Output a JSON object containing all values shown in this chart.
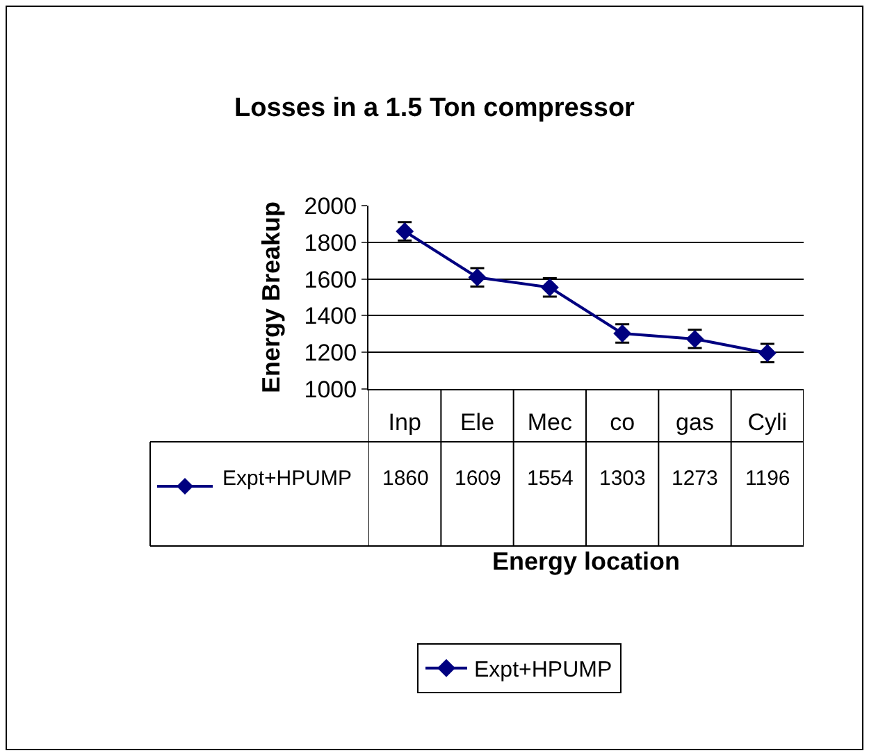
{
  "chart_data": {
    "type": "line",
    "title": "Losses in a 1.5 Ton compressor",
    "xlabel": "Energy location",
    "ylabel": "Energy Breakup",
    "categories": [
      "Inp",
      "Ele",
      "Mec",
      "co",
      "gas",
      "Cyli"
    ],
    "series": [
      {
        "name": "Expt+HPUMP",
        "color": "#000080",
        "values": [
          1860,
          1609,
          1554,
          1303,
          1273,
          1196
        ],
        "errors": [
          50,
          50,
          50,
          50,
          50,
          50
        ]
      }
    ],
    "ylim": [
      1000,
      2000
    ],
    "yticks": [
      1000,
      1200,
      1400,
      1600,
      1800,
      2000
    ],
    "grid": "y",
    "legend": "bottom",
    "marker": "diamond",
    "line_style": "solid",
    "data_labels": true
  }
}
